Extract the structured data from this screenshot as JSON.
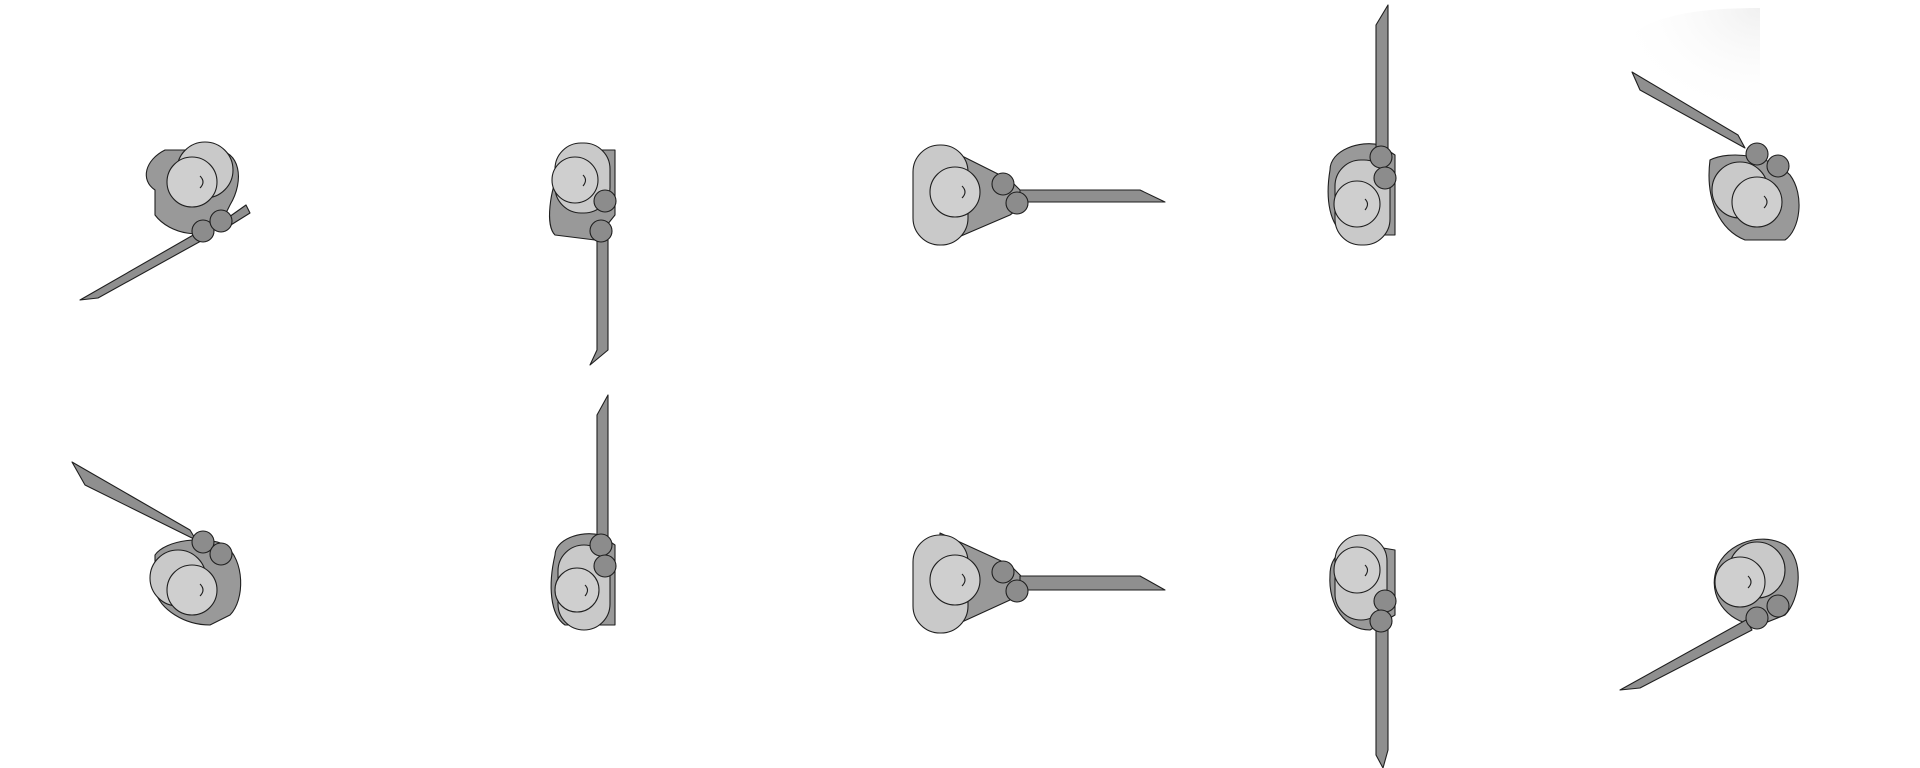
{
  "title": "",
  "colors": {
    "background": "#ffffff",
    "outline": "#1f1f1f",
    "blade": "#8f8f8f",
    "joint": "#8c8c8c",
    "body_dark": "#999999",
    "body_light": "#c9c9c9",
    "head": "#cfcfcf",
    "corner_glow": "#f3f3f3"
  },
  "figures": [
    {
      "name": "figure-row1-col1"
    },
    {
      "name": "figure-row1-col2"
    },
    {
      "name": "figure-row1-col3"
    },
    {
      "name": "figure-row1-col4"
    },
    {
      "name": "figure-row1-col5"
    },
    {
      "name": "figure-row2-col1"
    },
    {
      "name": "figure-row2-col2"
    },
    {
      "name": "figure-row2-col3"
    },
    {
      "name": "figure-row2-col4"
    },
    {
      "name": "figure-row2-col5"
    }
  ]
}
